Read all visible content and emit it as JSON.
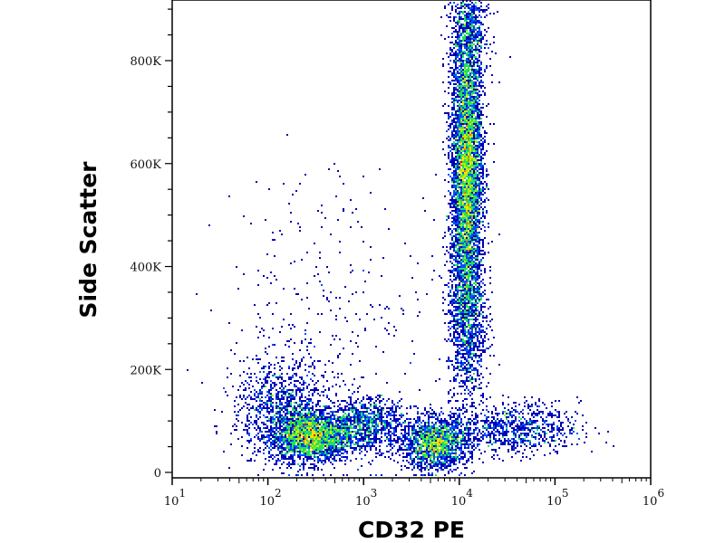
{
  "chart_data": {
    "type": "scatter",
    "subtype": "density-colored flow cytometry dot plot",
    "xlabel": "CD32 PE",
    "ylabel": "Side Scatter",
    "x_scale": "log",
    "xlim": [
      10,
      1000000
    ],
    "ylim": [
      0,
      920000
    ],
    "x_ticks": [
      {
        "value": 10,
        "base": "10",
        "exp": "1"
      },
      {
        "value": 100,
        "base": "10",
        "exp": "2"
      },
      {
        "value": 1000,
        "base": "10",
        "exp": "3"
      },
      {
        "value": 10000,
        "base": "10",
        "exp": "4"
      },
      {
        "value": 100000,
        "base": "10",
        "exp": "5"
      },
      {
        "value": 1000000,
        "base": "10",
        "exp": "6"
      }
    ],
    "y_ticks": [
      {
        "value": 0,
        "label": "0"
      },
      {
        "value": 200000,
        "label": "200K"
      },
      {
        "value": 400000,
        "label": "400K"
      },
      {
        "value": 600000,
        "label": "600K"
      },
      {
        "value": 800000,
        "label": "800K"
      }
    ],
    "grid": false,
    "legend": "none",
    "colormap": [
      "#0000b4",
      "#0050ff",
      "#00d8ff",
      "#20e060",
      "#b0f000",
      "#ffe000",
      "#ff7000",
      "#e00000"
    ],
    "populations": [
      {
        "log10_x_center": 2.45,
        "log10_x_sd": 0.22,
        "y_center": 70000,
        "y_sd": 25000,
        "count": 2600
      },
      {
        "log10_x_center": 2.15,
        "log10_x_sd": 0.25,
        "y_center": 130000,
        "y_sd": 45000,
        "count": 900
      },
      {
        "log10_x_center": 3.05,
        "log10_x_sd": 0.2,
        "y_center": 95000,
        "y_sd": 25000,
        "count": 900
      },
      {
        "log10_x_center": 3.75,
        "log10_x_sd": 0.17,
        "y_center": 55000,
        "y_sd": 25000,
        "count": 1700
      },
      {
        "log10_x_center": 4.55,
        "log10_x_sd": 0.35,
        "y_center": 85000,
        "y_sd": 25000,
        "count": 900
      },
      {
        "log10_x_center": 4.08,
        "log10_x_sd": 0.08,
        "y_center": 590000,
        "y_sd": 140000,
        "count": 5200
      },
      {
        "log10_x_center": 4.08,
        "log10_x_sd": 0.1,
        "y_center": 300000,
        "y_sd": 90000,
        "count": 1200
      },
      {
        "log10_x_center": 4.1,
        "log10_x_sd": 0.1,
        "y_center": 860000,
        "y_sd": 60000,
        "count": 700
      },
      {
        "log10_x_center": 2.7,
        "log10_x_sd": 0.6,
        "y_center": 300000,
        "y_sd": 150000,
        "count": 350
      }
    ]
  }
}
